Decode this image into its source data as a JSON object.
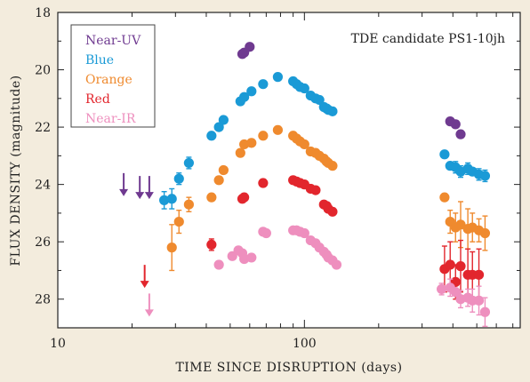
{
  "chart_data": {
    "type": "scatter",
    "title": "TDE candidate PS1-10jh",
    "xlabel": "TIME SINCE DISRUPTION (days)",
    "ylabel": "FLUX DENSITY (magnitude)",
    "x_scale": "log",
    "xlim": [
      10,
      750
    ],
    "ylim": [
      29.0,
      18.0
    ],
    "y_inverted": true,
    "x_ticks": [
      "10",
      "100"
    ],
    "y_ticks": [
      "18",
      "20",
      "22",
      "24",
      "26",
      "28"
    ],
    "legend_position": "top-left",
    "series": [
      {
        "name": "Near-UV",
        "color": "#6f3a90",
        "points": [
          [
            56,
            19.45
          ],
          [
            57,
            19.4
          ],
          [
            60,
            19.2
          ],
          [
            390,
            21.8
          ],
          [
            410,
            21.9
          ],
          [
            430,
            22.25
          ]
        ],
        "upper_limits": [
          [
            18.5,
            24.1
          ],
          [
            21.5,
            24.2
          ],
          [
            23.5,
            24.2
          ]
        ]
      },
      {
        "name": "Blue",
        "color": "#1a9ad6",
        "points": [
          [
            27,
            24.55
          ],
          [
            29,
            24.5
          ],
          [
            31,
            23.8
          ],
          [
            34,
            23.25
          ],
          [
            42,
            22.3
          ],
          [
            45,
            22.0
          ],
          [
            47,
            21.75
          ],
          [
            55,
            21.1
          ],
          [
            57,
            20.95
          ],
          [
            61,
            20.75
          ],
          [
            68,
            20.5
          ],
          [
            78,
            20.25
          ],
          [
            90,
            20.4
          ],
          [
            93,
            20.5
          ],
          [
            96,
            20.6
          ],
          [
            100,
            20.65
          ],
          [
            106,
            20.9
          ],
          [
            111,
            21.0
          ],
          [
            115,
            21.05
          ],
          [
            120,
            21.3
          ],
          [
            123,
            21.35
          ],
          [
            125,
            21.4
          ],
          [
            130,
            21.45
          ],
          [
            370,
            22.95
          ],
          [
            390,
            23.35
          ],
          [
            410,
            23.4
          ],
          [
            430,
            23.55
          ],
          [
            460,
            23.45
          ],
          [
            480,
            23.55
          ],
          [
            510,
            23.65
          ],
          [
            540,
            23.7
          ]
        ],
        "error_bars": [
          [
            27,
            24.55,
            0.3
          ],
          [
            29,
            24.5,
            0.35
          ],
          [
            31,
            23.8,
            0.2
          ],
          [
            34,
            23.25,
            0.2
          ],
          [
            410,
            23.4,
            0.2
          ],
          [
            430,
            23.55,
            0.2
          ],
          [
            460,
            23.45,
            0.2
          ],
          [
            510,
            23.65,
            0.2
          ],
          [
            540,
            23.7,
            0.2
          ]
        ]
      },
      {
        "name": "Orange",
        "color": "#ef8a2e",
        "points": [
          [
            29,
            26.2
          ],
          [
            31,
            25.3
          ],
          [
            34,
            24.7
          ],
          [
            42,
            24.45
          ],
          [
            45,
            23.85
          ],
          [
            47,
            23.5
          ],
          [
            55,
            22.9
          ],
          [
            57,
            22.6
          ],
          [
            61,
            22.55
          ],
          [
            68,
            22.3
          ],
          [
            78,
            22.1
          ],
          [
            90,
            22.3
          ],
          [
            93,
            22.4
          ],
          [
            96,
            22.5
          ],
          [
            100,
            22.6
          ],
          [
            106,
            22.85
          ],
          [
            111,
            22.9
          ],
          [
            115,
            23.0
          ],
          [
            120,
            23.1
          ],
          [
            123,
            23.2
          ],
          [
            125,
            23.25
          ],
          [
            130,
            23.35
          ],
          [
            370,
            24.45
          ],
          [
            390,
            25.3
          ],
          [
            410,
            25.5
          ],
          [
            430,
            25.4
          ],
          [
            460,
            25.55
          ],
          [
            480,
            25.5
          ],
          [
            510,
            25.6
          ],
          [
            540,
            25.7
          ]
        ],
        "error_bars": [
          [
            29,
            26.2,
            0.8
          ],
          [
            31,
            25.3,
            0.4
          ],
          [
            34,
            24.7,
            0.25
          ],
          [
            390,
            25.3,
            0.4
          ],
          [
            410,
            25.5,
            0.5
          ],
          [
            430,
            25.4,
            0.8
          ],
          [
            460,
            25.55,
            0.7
          ],
          [
            480,
            25.5,
            0.5
          ],
          [
            510,
            25.6,
            0.4
          ],
          [
            540,
            25.7,
            0.6
          ]
        ]
      },
      {
        "name": "Red",
        "color": "#e2262d",
        "points": [
          [
            42,
            26.1
          ],
          [
            56,
            24.5
          ],
          [
            57,
            24.45
          ],
          [
            68,
            23.95
          ],
          [
            90,
            23.85
          ],
          [
            93,
            23.9
          ],
          [
            96,
            23.95
          ],
          [
            100,
            24.0
          ],
          [
            106,
            24.15
          ],
          [
            111,
            24.2
          ],
          [
            120,
            24.7
          ],
          [
            123,
            24.75
          ],
          [
            125,
            24.85
          ],
          [
            130,
            24.95
          ],
          [
            370,
            26.95
          ],
          [
            390,
            26.8
          ],
          [
            410,
            27.4
          ],
          [
            430,
            26.85
          ],
          [
            460,
            27.15
          ],
          [
            480,
            27.15
          ],
          [
            510,
            27.15
          ]
        ],
        "error_bars": [
          [
            42,
            26.1,
            0.2
          ],
          [
            370,
            26.95,
            0.8
          ],
          [
            390,
            26.8,
            0.8
          ],
          [
            410,
            27.4,
            0.6
          ],
          [
            430,
            26.85,
            0.9
          ],
          [
            460,
            27.15,
            0.9
          ],
          [
            480,
            27.15,
            0.8
          ],
          [
            510,
            27.15,
            0.9
          ]
        ],
        "upper_limits": [
          [
            22.5,
            27.3
          ]
        ]
      },
      {
        "name": "Near-IR",
        "color": "#ee8fbe",
        "points": [
          [
            45,
            26.8
          ],
          [
            51,
            26.5
          ],
          [
            54,
            26.3
          ],
          [
            56,
            26.4
          ],
          [
            57,
            26.6
          ],
          [
            61,
            26.55
          ],
          [
            68,
            25.65
          ],
          [
            70,
            25.7
          ],
          [
            90,
            25.6
          ],
          [
            93,
            25.6
          ],
          [
            96,
            25.65
          ],
          [
            100,
            25.7
          ],
          [
            106,
            25.95
          ],
          [
            111,
            26.05
          ],
          [
            115,
            26.2
          ],
          [
            120,
            26.35
          ],
          [
            123,
            26.45
          ],
          [
            125,
            26.55
          ],
          [
            130,
            26.65
          ],
          [
            135,
            26.8
          ],
          [
            360,
            27.65
          ],
          [
            390,
            27.6
          ],
          [
            410,
            27.75
          ],
          [
            430,
            28.0
          ],
          [
            460,
            27.95
          ],
          [
            480,
            28.05
          ],
          [
            510,
            28.05
          ],
          [
            540,
            28.45
          ]
        ],
        "error_bars": [
          [
            360,
            27.65,
            0.2
          ],
          [
            390,
            27.6,
            0.3
          ],
          [
            430,
            28.0,
            0.3
          ],
          [
            460,
            27.95,
            0.3
          ],
          [
            480,
            28.05,
            0.4
          ],
          [
            510,
            28.05,
            0.5
          ],
          [
            540,
            28.45,
            0.5
          ]
        ],
        "upper_limits": [
          [
            23.5,
            28.3
          ]
        ]
      }
    ]
  }
}
